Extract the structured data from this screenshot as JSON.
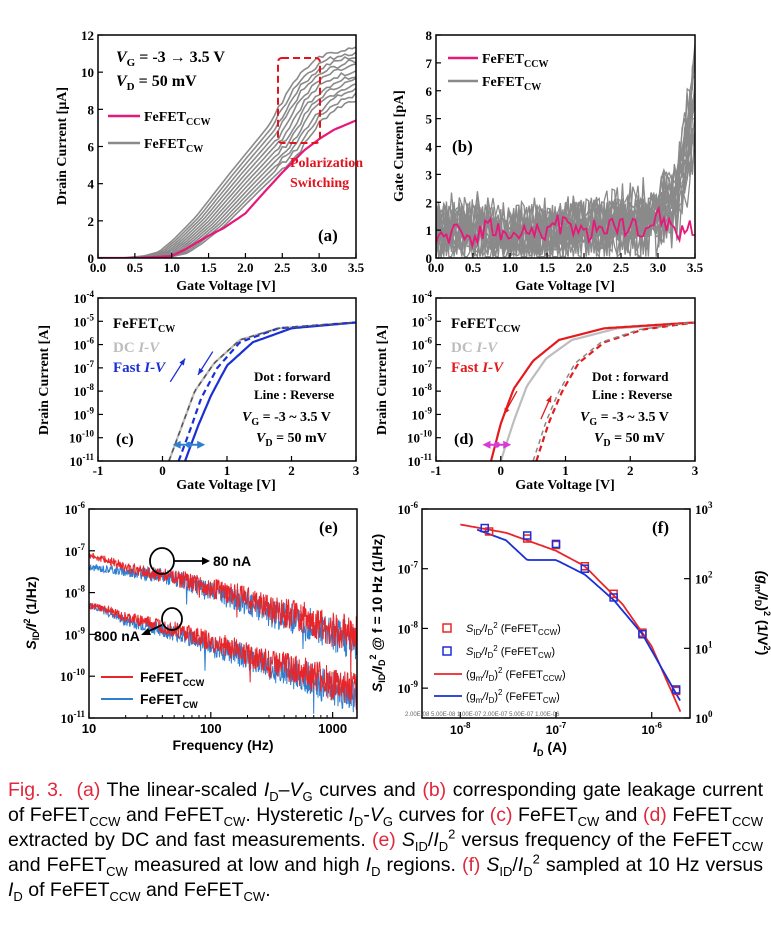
{
  "panels": {
    "a": {
      "tag": "(a)",
      "ylabel": "Drain Current [μA]",
      "xlabel": "Gate Voltage [V]",
      "xticks": [
        "0.0",
        "0.5",
        "1.0",
        "1.5",
        "2.0",
        "2.5",
        "3.0",
        "3.5"
      ],
      "yticks": [
        "0",
        "2",
        "4",
        "6",
        "8",
        "10",
        "12"
      ],
      "cond1": "V",
      "cond1_sub": "G",
      "cond1_rest": " = -3 → 3.5 V",
      "cond2": "V",
      "cond2_sub": "D",
      "cond2_rest": " = 50 mV",
      "legend_ccw": "FeFET",
      "legend_ccw_sub": "CCW",
      "legend_cw": "FeFET",
      "legend_cw_sub": "CW",
      "annot1": "Polarization",
      "annot2": "Switching"
    },
    "b": {
      "tag": "(b)",
      "ylabel": "Gate Current [pA]",
      "xlabel": "Gate Voltage [V]",
      "xticks": [
        "0.0",
        "0.5",
        "1.0",
        "1.5",
        "2.0",
        "2.5",
        "3.0",
        "3.5"
      ],
      "yticks": [
        "0",
        "1",
        "2",
        "3",
        "4",
        "5",
        "6",
        "7",
        "8"
      ],
      "legend_ccw": "FeFET",
      "legend_ccw_sub": "CCW",
      "legend_cw": "FeFET",
      "legend_cw_sub": "CW"
    },
    "c": {
      "tag": "(c)",
      "ylabel": "Drain Current [A]",
      "xlabel": "Gate Voltage [V]",
      "xticks": [
        "-1",
        "0",
        "1",
        "2",
        "3"
      ],
      "title": "FeFET",
      "title_sub": "CW",
      "dc": "DC ",
      "dc_i": "I-V",
      "fast": "Fast ",
      "fast_i": "I-V",
      "dot": "Dot : forward",
      "line": "Line : Reverse",
      "vg": "V",
      "vg_sub": "G",
      "vg_rest": " = -3 ~ 3.5 V",
      "vd": "V",
      "vd_sub": "D",
      "vd_rest": " = 50 mV"
    },
    "d": {
      "tag": "(d)",
      "ylabel": "Drain Current [A]",
      "xlabel": "Gate Voltage [V]",
      "xticks": [
        "-1",
        "0",
        "1",
        "2",
        "3"
      ],
      "title": "FeFET",
      "title_sub": "CCW",
      "dc": "DC ",
      "dc_i": "I-V",
      "fast": "Fast ",
      "fast_i": "I-V",
      "dot": "Dot : forward",
      "line": "Line : Reverse",
      "vg": "V",
      "vg_sub": "G",
      "vg_rest": " = -3 ~ 3.5 V",
      "vd": "V",
      "vd_sub": "D",
      "vd_rest": " = 50 mV"
    },
    "e": {
      "tag": "(e)",
      "ylabel_s": "S",
      "ylabel_sub": "ID",
      "ylabel_rest": "/I",
      "ylabel_sup": "2",
      "ylabel_unit": " (1/Hz)",
      "xlabel": "Frequency (Hz)",
      "xticks": [
        "10",
        "100",
        "1000"
      ],
      "annot_80": "80 nA",
      "annot_800": "800 nA",
      "legend_ccw": "FeFET",
      "legend_ccw_sub": "CCW",
      "legend_cw": "FeFET",
      "legend_cw_sub": "CW"
    },
    "f": {
      "tag": "(f)",
      "ylabel_left": "S",
      "ylabel_left_sub": "ID",
      "ylabel_left_rest": "/I",
      "ylabel_left_sub2": "D",
      "ylabel_left_sup": "2",
      "ylabel_left_tail": " @ f = 10 Hz (1/Hz)",
      "ylabel_right": "(g",
      "ylabel_right_sub": "m",
      "ylabel_right_rest": "/I",
      "ylabel_right_sub2": "D",
      "ylabel_right_sup": "2",
      "ylabel_right_tail": ")  (1/V",
      "ylabel_right_sup2": "2",
      "ylabel_right_end": ")",
      "xlabel": "I",
      "xlabel_sub": "D",
      "xlabel_unit": " (A)",
      "xticks": [
        "10",
        "10",
        "10"
      ],
      "xticks_exp": [
        "-8",
        "-7",
        "-6"
      ],
      "yticks_right": [
        "10",
        "10",
        "10",
        "10"
      ],
      "yticks_right_exp": [
        "0",
        "1",
        "2",
        "3"
      ],
      "leg1": "S",
      "leg1_sub": "ID",
      "leg1_rest": "/I",
      "leg1_sub2": "D",
      "leg1_sup": "2",
      "leg1_tail": " (FeFET",
      "leg1_sub3": "CCW",
      "leg1_end": ")",
      "leg2_tail_sub": "CW",
      "leg3": "(g",
      "leg3_sub": "m",
      "leg3_rest": "/I",
      "leg3_sub2": "D",
      "leg3_rest2": ")",
      "leg3_sup": "2",
      "leg3_tail": " (FeFET",
      "leg3_sub3": "CCW",
      "leg3_end": ")",
      "leg4_tail_sub": "CW",
      "watermark": "2.00E-08   5.00E-08   1.00E-07   2.00E-07   5.00E-07   1.00E-06"
    },
    "logticks": [
      "10",
      "10",
      "10",
      "10",
      "10",
      "10",
      "10",
      "10"
    ],
    "logticks_cd_exp": [
      "-4",
      "-5",
      "-6",
      "-7",
      "-8",
      "-9",
      "-10",
      "-11"
    ],
    "logticks_ef_exp": [
      "-6",
      "-7",
      "-8",
      "-9",
      "-10",
      "-11"
    ]
  },
  "colors": {
    "ccw": "#e6187a",
    "cw": "#8a8a8a",
    "fast_blue": "#1a2fd6",
    "fast_red": "#e41a1c",
    "dc_gray": "#bdbdbd",
    "noise_red": "#e8262a",
    "noise_blue": "#2f7fd1",
    "dashed_box": "#e2131d",
    "caption_tag": "#e0283c"
  },
  "chart_data": [
    {
      "panel": "a",
      "type": "line",
      "xlabel": "Gate Voltage [V]",
      "ylabel": "Drain Current [μA]",
      "xlim": [
        0,
        3.5
      ],
      "ylim": [
        0,
        12
      ],
      "series": [
        {
          "name": "FeFET CCW",
          "x": [
            0,
            0.5,
            1.0,
            1.2,
            1.5,
            1.7,
            2.0,
            2.2,
            2.5,
            2.8,
            3.0,
            3.2,
            3.5
          ],
          "y": [
            0,
            0,
            0.1,
            0.5,
            1.2,
            1.6,
            2.4,
            3.3,
            4.6,
            5.8,
            6.4,
            6.9,
            7.4
          ]
        },
        {
          "name": "FeFET CW",
          "x": [
            0,
            0.5,
            0.8,
            1.0,
            1.2,
            1.5,
            2.0,
            2.5,
            2.8,
            3.0,
            3.2,
            3.5
          ],
          "y": [
            0,
            0,
            0.1,
            0.3,
            0.9,
            2.0,
            4.3,
            6.5,
            8.5,
            9.3,
            9.8,
            10.2
          ]
        }
      ]
    },
    {
      "panel": "b",
      "type": "line",
      "xlabel": "Gate Voltage [V]",
      "ylabel": "Gate Current [pA]",
      "xlim": [
        0,
        3.5
      ],
      "ylim": [
        0,
        8
      ],
      "series": [
        {
          "name": "FeFET CCW",
          "x": [
            0,
            0.25,
            0.5,
            0.75,
            1.0,
            1.25,
            1.5,
            1.75,
            2.0,
            2.25,
            2.5,
            2.75,
            3.0,
            3.25,
            3.5
          ],
          "y": [
            0.3,
            1.1,
            0.7,
            1.2,
            0.6,
            0.9,
            1.0,
            1.3,
            0.8,
            1.1,
            1.2,
            0.9,
            1.5,
            0.9,
            1.1
          ]
        },
        {
          "name": "FeFET CW",
          "x": [
            0,
            0.5,
            1.0,
            1.5,
            2.0,
            2.5,
            3.0,
            3.25,
            3.5
          ],
          "y": [
            1.0,
            1.2,
            1.0,
            1.1,
            1.2,
            1.4,
            1.8,
            2.6,
            6.5
          ]
        }
      ]
    },
    {
      "panel": "c",
      "type": "line",
      "xlabel": "Gate Voltage [V]",
      "ylabel": "Drain Current [A]",
      "xlim": [
        -1,
        3
      ],
      "ylim_log10": [
        -11,
        -4
      ],
      "series": [
        {
          "name": "DC I-V (forward)",
          "x": [
            0.1,
            0.3,
            0.5,
            0.8,
            1.2,
            1.8,
            3.0
          ],
          "y_log10": [
            -11,
            -9.5,
            -8,
            -6.8,
            -5.8,
            -5.3,
            -5.05
          ]
        },
        {
          "name": "Fast I-V (forward)",
          "x": [
            0.25,
            0.45,
            0.6,
            0.85,
            1.2,
            1.8,
            3.0
          ],
          "y_log10": [
            -11,
            -9.5,
            -8.3,
            -7.0,
            -5.9,
            -5.3,
            -5.05
          ]
        },
        {
          "name": "Fast I-V (reverse)",
          "x": [
            0.35,
            0.55,
            0.75,
            1.0,
            1.4,
            2.0,
            3.0
          ],
          "y_log10": [
            -11,
            -9.5,
            -8.2,
            -6.9,
            -5.9,
            -5.3,
            -5.05
          ]
        }
      ]
    },
    {
      "panel": "d",
      "type": "line",
      "xlabel": "Gate Voltage [V]",
      "ylabel": "Drain Current [A]",
      "xlim": [
        -1,
        3
      ],
      "ylim_log10": [
        -11,
        -4
      ],
      "series": [
        {
          "name": "DC I-V (reverse)",
          "x": [
            0.0,
            0.2,
            0.4,
            0.7,
            1.1,
            1.8,
            3.0
          ],
          "y_log10": [
            -11,
            -9.3,
            -7.8,
            -6.6,
            -5.8,
            -5.3,
            -5.05
          ]
        },
        {
          "name": "Fast I-V (reverse)",
          "x": [
            -0.15,
            0.0,
            0.2,
            0.5,
            0.9,
            1.6,
            3.0
          ],
          "y_log10": [
            -11,
            -9.4,
            -7.9,
            -6.7,
            -5.8,
            -5.3,
            -5.05
          ]
        },
        {
          "name": "Fast I-V (forward)",
          "x": [
            0.55,
            0.75,
            0.95,
            1.2,
            1.6,
            2.2,
            3.0
          ],
          "y_log10": [
            -11,
            -9.3,
            -8.0,
            -6.8,
            -5.9,
            -5.35,
            -5.05
          ]
        }
      ]
    },
    {
      "panel": "e",
      "type": "line",
      "xlabel": "Frequency (Hz)",
      "ylabel": "S_ID/I^2 (1/Hz)",
      "xlim_log10": [
        1,
        3.2
      ],
      "ylim_log10": [
        -11,
        -6
      ],
      "series": [
        {
          "name": "FeFET CCW 80 nA",
          "x": [
            10,
            20,
            40,
            100,
            300,
            1000,
            1600
          ],
          "y_log10": [
            -7.1,
            -7.4,
            -7.6,
            -7.9,
            -8.4,
            -8.9,
            -9.0
          ]
        },
        {
          "name": "FeFET CW 80 nA",
          "x": [
            10,
            20,
            40,
            100,
            300,
            1000,
            1600
          ],
          "y_log10": [
            -7.4,
            -7.5,
            -7.6,
            -8.0,
            -8.5,
            -9.0,
            -9.2
          ]
        },
        {
          "name": "FeFET CCW 800 nA",
          "x": [
            10,
            20,
            40,
            100,
            300,
            1000,
            1600
          ],
          "y_log10": [
            -8.3,
            -8.6,
            -8.8,
            -9.2,
            -9.7,
            -10.2,
            -10.4
          ]
        },
        {
          "name": "FeFET CW 800 nA",
          "x": [
            10,
            20,
            40,
            100,
            300,
            1000,
            1600
          ],
          "y_log10": [
            -8.3,
            -8.7,
            -8.9,
            -9.3,
            -9.8,
            -10.3,
            -10.5
          ]
        }
      ]
    },
    {
      "panel": "f",
      "type": "scatter",
      "xlabel": "I_D (A)",
      "ylabel": "S_ID/I_D^2 @ f = 10 Hz (1/Hz)",
      "xlim_log10": [
        -8.4,
        -5.6
      ],
      "ylim_log10": [
        -9.5,
        -6
      ],
      "series": [
        {
          "name": "S_ID/I_D^2 (FeFET CCW)",
          "x": [
            2e-08,
            5e-08,
            1e-07,
            2e-07,
            4e-07,
            8e-07,
            1.8e-06
          ],
          "y": [
            4.2e-07,
            3.2e-07,
            2.5e-07,
            1.1e-07,
            3.8e-08,
            8.5e-09,
            9e-10
          ]
        },
        {
          "name": "S_ID/I_D^2 (FeFET CW)",
          "x": [
            1.8e-08,
            5e-08,
            1e-07,
            2e-07,
            4e-07,
            8e-07,
            1.8e-06
          ],
          "y": [
            4.8e-07,
            3.6e-07,
            2.6e-07,
            1e-07,
            3.3e-08,
            8e-09,
            9.5e-10
          ]
        },
        {
          "name": "(gm/I_D)^2 (FeFET CCW)",
          "x": [
            1e-08,
            3e-08,
            1e-07,
            2e-07,
            5e-07,
            1e-06,
            2e-06
          ],
          "y": [
            5.5e-07,
            4e-07,
            2e-07,
            1.1e-07,
            2.5e-08,
            5e-09,
            4e-10
          ]
        },
        {
          "name": "(gm/I_D)^2 (FeFET CW)",
          "x": [
            1.5e-08,
            3e-08,
            5e-08,
            1e-07,
            2e-07,
            4e-07,
            8e-07,
            2e-06
          ],
          "y": [
            4.5e-07,
            3e-07,
            1.4e-07,
            1.4e-07,
            8e-08,
            3e-08,
            8e-09,
            6e-10
          ]
        }
      ]
    }
  ],
  "caption": {
    "fig": "Fig. 3.",
    "a": "(a)",
    "t1": " The linear-scaled ",
    "t2": " curves and ",
    "b": "(b)",
    "t3": " corresponding gate leakage current of FeFET",
    "t4": " and FeFET",
    "t5": ". Hysteretic ",
    "t6": " curves for ",
    "c": "(c)",
    "t7": " FeFET",
    "t8": " and ",
    "d": "(d)",
    "t9": " FeFET",
    "t10": " extracted by DC and fast measurements. ",
    "e": "(e)",
    "t11": " versus frequency of the FeFET",
    "t12": " and FeFET",
    "t13": " measured at low and high ",
    "t14": " regions. ",
    "f": "(f)",
    "t15": " sampled at 10 Hz versus ",
    "t16": " of FeFET",
    "t17": " and FeFET",
    "t18": ".",
    "ccw": "CCW",
    "cw": "CW"
  }
}
